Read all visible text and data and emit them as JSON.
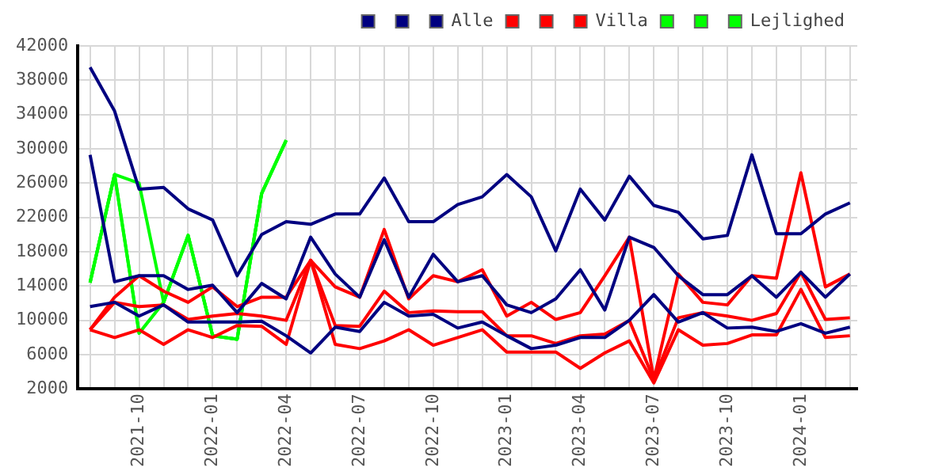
{
  "chart_data": {
    "type": "line",
    "x": [
      "2021-08",
      "2021-09",
      "2021-10",
      "2021-11",
      "2021-12",
      "2022-01",
      "2022-02",
      "2022-03",
      "2022-04",
      "2022-05",
      "2022-06",
      "2022-07",
      "2022-08",
      "2022-09",
      "2022-10",
      "2022-11",
      "2022-12",
      "2023-01",
      "2023-02",
      "2023-03",
      "2023-04",
      "2023-05",
      "2023-06",
      "2023-07",
      "2023-08",
      "2023-09",
      "2023-10",
      "2023-11",
      "2023-12",
      "2024-01",
      "2024-02",
      "2024-03"
    ],
    "series": [
      {
        "color": "#000080",
        "values": [
          39500,
          34400,
          25300,
          25500,
          23000,
          21700,
          15200,
          20000,
          21500,
          21200,
          22400,
          22400,
          26600,
          21500,
          21500,
          23500,
          24400,
          27000,
          24400,
          18100,
          25300,
          21700,
          26800,
          23400,
          22600,
          19500,
          19900,
          29300,
          20100,
          20100,
          22400,
          23700
        ]
      },
      {
        "color": "#000080",
        "values": [
          29300,
          14500,
          15200,
          15200,
          13600,
          14100,
          10900,
          14300,
          12500,
          19700,
          15400,
          12700,
          19400,
          12700,
          17700,
          14500,
          15200,
          11800,
          10900,
          12500,
          15900,
          11200,
          19700,
          18500,
          15200,
          13000,
          13000,
          15200,
          12700,
          15600,
          12700,
          15400
        ]
      },
      {
        "name": "Alle",
        "color": "#000080",
        "values": [
          11600,
          12100,
          10500,
          11800,
          9800,
          9800,
          9800,
          9900,
          8200,
          6200,
          9200,
          8700,
          12100,
          10500,
          10700,
          9100,
          9800,
          8200,
          6700,
          7100,
          8000,
          8000,
          10000,
          13000,
          9800,
          10900,
          9100,
          9200,
          8700,
          9600,
          8500,
          9200
        ]
      },
      {
        "color": "#ff0000",
        "values": [
          8900,
          12700,
          15200,
          13400,
          12100,
          13900,
          11600,
          12700,
          12700,
          17000,
          13900,
          12700,
          20600,
          12500,
          15200,
          14500,
          15900,
          10500,
          12100,
          10100,
          10900,
          15200,
          19700,
          3100,
          15400,
          12100,
          11800,
          15200,
          14900,
          27200,
          13900,
          15400
        ]
      },
      {
        "color": "#ff0000",
        "values": [
          8900,
          12100,
          11600,
          11800,
          10100,
          10500,
          10800,
          10500,
          10000,
          17000,
          9400,
          9300,
          13400,
          10900,
          11100,
          11000,
          11000,
          8200,
          8200,
          7300,
          8200,
          8400,
          10000,
          3100,
          10300,
          10900,
          10500,
          10000,
          10800,
          15600,
          10100,
          10300
        ]
      },
      {
        "name": "Villa",
        "color": "#ff0000",
        "values": [
          8900,
          8000,
          8900,
          7200,
          8900,
          8000,
          9400,
          9300,
          7200,
          17000,
          7200,
          6700,
          7600,
          8900,
          7100,
          8000,
          8900,
          6300,
          6300,
          6300,
          4400,
          6200,
          7600,
          2700,
          8900,
          7100,
          7300,
          8300,
          8300,
          13600,
          8000,
          8200
        ]
      },
      {
        "color": "#00ff00",
        "values": [
          14400,
          27000,
          8500,
          12100,
          19900,
          8200,
          7800,
          24800,
          31000,
          null,
          null,
          null,
          null,
          null,
          null,
          null,
          null,
          null,
          null,
          null,
          null,
          null,
          null,
          null,
          null,
          null,
          null,
          null,
          null,
          null,
          null,
          null
        ]
      },
      {
        "color": "#00ff00",
        "values": [
          14400,
          27000,
          26000,
          12100,
          19900,
          8200,
          7800,
          24800,
          31000,
          null,
          null,
          null,
          null,
          null,
          null,
          null,
          null,
          null,
          null,
          null,
          null,
          null,
          null,
          null,
          null,
          null,
          null,
          null,
          null,
          null,
          null,
          null
        ]
      },
      {
        "name": "Lejlighed",
        "color": "#00ff00",
        "values": [
          14400,
          27000,
          8500,
          12100,
          19900,
          8200,
          7800,
          24800,
          31000,
          null,
          null,
          null,
          null,
          null,
          null,
          null,
          null,
          null,
          null,
          null,
          null,
          null,
          null,
          null,
          null,
          null,
          null,
          null,
          null,
          null,
          null,
          null
        ]
      }
    ],
    "xlim": [
      "2021-07-16",
      "2024-03-10"
    ],
    "xticks": [
      {
        "value": "2021-08",
        "label": null
      },
      {
        "value": "2021-09",
        "label": null
      },
      {
        "value": "2021-10",
        "label": "2021-10"
      },
      {
        "value": "2021-11",
        "label": null
      },
      {
        "value": "2021-12",
        "label": null
      },
      {
        "value": "2022-01",
        "label": "2022-01"
      },
      {
        "value": "2022-02",
        "label": null
      },
      {
        "value": "2022-03",
        "label": null
      },
      {
        "value": "2022-04",
        "label": "2022-04"
      },
      {
        "value": "2022-05",
        "label": null
      },
      {
        "value": "2022-06",
        "label": null
      },
      {
        "value": "2022-07",
        "label": "2022-07"
      },
      {
        "value": "2022-08",
        "label": null
      },
      {
        "value": "2022-09",
        "label": null
      },
      {
        "value": "2022-10",
        "label": "2022-10"
      },
      {
        "value": "2022-11",
        "label": null
      },
      {
        "value": "2022-12",
        "label": null
      },
      {
        "value": "2023-01",
        "label": "2023-01"
      },
      {
        "value": "2023-02",
        "label": null
      },
      {
        "value": "2023-03",
        "label": null
      },
      {
        "value": "2023-04",
        "label": "2023-04"
      },
      {
        "value": "2023-05",
        "label": null
      },
      {
        "value": "2023-06",
        "label": null
      },
      {
        "value": "2023-07",
        "label": "2023-07"
      },
      {
        "value": "2023-08",
        "label": null
      },
      {
        "value": "2023-09",
        "label": null
      },
      {
        "value": "2023-10",
        "label": "2023-10"
      },
      {
        "value": "2023-11",
        "label": null
      },
      {
        "value": "2023-12",
        "label": null
      },
      {
        "value": "2024-01",
        "label": "2024-01"
      },
      {
        "value": "2024-02",
        "label": null
      },
      {
        "value": "2024-03",
        "label": null
      }
    ],
    "ylim": [
      2000,
      42000
    ],
    "yticks": [
      2000,
      6000,
      10000,
      14000,
      18000,
      22000,
      26000,
      30000,
      34000,
      38000,
      42000
    ],
    "grid": true,
    "legend": "top right",
    "marker": "none",
    "line_style": "solid"
  }
}
